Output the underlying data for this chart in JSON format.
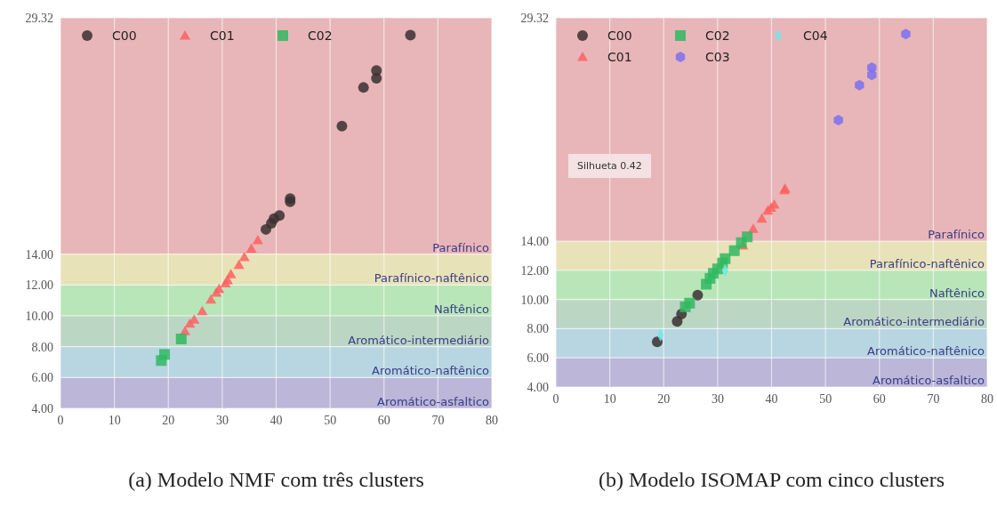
{
  "chart_data": [
    {
      "type": "scatter",
      "xlabel": "(a) Modelo NMF com três clusters",
      "xlim": [
        0,
        80
      ],
      "xticks": [
        0,
        10,
        20,
        30,
        40,
        50,
        60,
        70,
        80
      ],
      "ylim": [
        4,
        29.32
      ],
      "yticks": [
        {
          "value": 4,
          "label": "4.00"
        },
        {
          "value": 6,
          "label": "6.00"
        },
        {
          "value": 8,
          "label": "8.00"
        },
        {
          "value": 10,
          "label": "10.00"
        },
        {
          "value": 12,
          "label": "12.00"
        },
        {
          "value": 14,
          "label": "14.00"
        },
        {
          "value": 29.32,
          "label": "29.32"
        }
      ],
      "grid": true,
      "legend": "top left",
      "bands": [
        {
          "axis": "y",
          "from": 4,
          "to": 6,
          "label": "Aromático-asfaltico",
          "color": "#bcb6d8"
        },
        {
          "axis": "y",
          "from": 6,
          "to": 8,
          "label": "Aromático-naftênico",
          "color": "#b8d6e2"
        },
        {
          "axis": "y",
          "from": 8,
          "to": 10,
          "label": "Aromático-intermediário",
          "color": "#bcd6c4"
        },
        {
          "axis": "y",
          "from": 10,
          "to": 12,
          "label": "Naftênico",
          "color": "#b8e6b8"
        },
        {
          "axis": "y",
          "from": 12,
          "to": 14,
          "label": "Parafínico-naftênico",
          "color": "#e8e2b8"
        },
        {
          "axis": "y",
          "from": 14,
          "to": 29.32,
          "label": "Parafínico",
          "color": "#e8b6b8"
        }
      ],
      "series": [
        {
          "name": "C00",
          "color": "#3a3030",
          "marker": "circle",
          "x": [
            64.9,
            58.6,
            58.6,
            56.2,
            52.2,
            42.6,
            42.6,
            40.6,
            39.6,
            39.1,
            38.1
          ],
          "values": [
            28.2,
            25.9,
            25.4,
            24.8,
            22.3,
            17.6,
            17.4,
            16.5,
            16.3,
            16.0,
            15.6
          ]
        },
        {
          "name": "C01",
          "color": "#ff6060",
          "marker": "triangle",
          "x": [
            36.6,
            35.4,
            34.1,
            33.1,
            31.6,
            31.0,
            30.6,
            29.4,
            28.9,
            27.9,
            26.3,
            24.8,
            24.0,
            23.1
          ],
          "values": [
            14.9,
            14.35,
            13.8,
            13.3,
            12.7,
            12.3,
            12.1,
            11.75,
            11.5,
            11.05,
            10.3,
            9.75,
            9.5,
            9.0
          ]
        },
        {
          "name": "C02",
          "color": "#30b860",
          "marker": "square",
          "x": [
            22.4,
            19.3,
            18.7
          ],
          "values": [
            8.5,
            7.5,
            7.1
          ]
        }
      ]
    },
    {
      "type": "scatter",
      "xlabel": "(b) Modelo ISOMAP com cinco clusters",
      "xlim": [
        0,
        80
      ],
      "xticks": [
        0,
        10,
        20,
        30,
        40,
        50,
        60,
        70,
        80
      ],
      "ylim": [
        4,
        29.32
      ],
      "yticks": [
        {
          "value": 4,
          "label": "4.00"
        },
        {
          "value": 6,
          "label": "6.00"
        },
        {
          "value": 8,
          "label": "8.00"
        },
        {
          "value": 10,
          "label": "10.00"
        },
        {
          "value": 12,
          "label": "12.00"
        },
        {
          "value": 14,
          "label": "14.00"
        },
        {
          "value": 29.32,
          "label": "29.32"
        }
      ],
      "grid": true,
      "legend": "top left",
      "annotations": [
        "Silhueta 0.42"
      ],
      "bands": [
        {
          "axis": "y",
          "from": 4,
          "to": 6,
          "label": "Aromático-asfaltico",
          "color": "#bcb6d8"
        },
        {
          "axis": "y",
          "from": 6,
          "to": 8,
          "label": "Aromático-naftênico",
          "color": "#b8d6e2"
        },
        {
          "axis": "y",
          "from": 8,
          "to": 10,
          "label": "Aromático-intermediário",
          "color": "#bcd6c4"
        },
        {
          "axis": "y",
          "from": 10,
          "to": 12,
          "label": "Naftênico",
          "color": "#b8e6b8"
        },
        {
          "axis": "y",
          "from": 12,
          "to": 14,
          "label": "Parafínico-naftênico",
          "color": "#e8e2b8"
        },
        {
          "axis": "y",
          "from": 14,
          "to": 29.32,
          "label": "Parafínico",
          "color": "#e8b6b8"
        }
      ],
      "series": [
        {
          "name": "C00",
          "color": "#3a3030",
          "marker": "circle",
          "x": [
            26.3,
            23.3,
            22.5,
            18.8
          ],
          "values": [
            10.3,
            9.0,
            8.5,
            7.1
          ]
        },
        {
          "name": "C01",
          "color": "#ff6060",
          "marker": "triangle",
          "x": [
            42.5,
            42.4,
            40.5,
            39.9,
            39.3,
            38.2,
            36.6,
            34.7
          ],
          "values": [
            17.6,
            17.5,
            16.5,
            16.3,
            16.1,
            15.55,
            14.85,
            13.7
          ]
        },
        {
          "name": "C02",
          "color": "#30b860",
          "marker": "square",
          "x": [
            35.5,
            34.4,
            33.1,
            31.4,
            30.9,
            30.0,
            29.2,
            28.6,
            27.9,
            24.8,
            24.0
          ],
          "values": [
            14.3,
            13.9,
            13.35,
            12.8,
            12.5,
            12.1,
            11.8,
            11.45,
            11.05,
            9.75,
            9.5
          ]
        },
        {
          "name": "C03",
          "color": "#7a70ee",
          "x": [
            64.9,
            58.6,
            58.6,
            56.3,
            52.4
          ],
          "values": [
            28.2,
            25.9,
            25.4,
            24.7,
            22.3
          ]
        },
        {
          "name": "C04",
          "color": "#70e8e8",
          "marker": "diamond",
          "x": [
            31.4,
            19.4
          ],
          "values": [
            12.0,
            7.55
          ]
        }
      ]
    }
  ]
}
